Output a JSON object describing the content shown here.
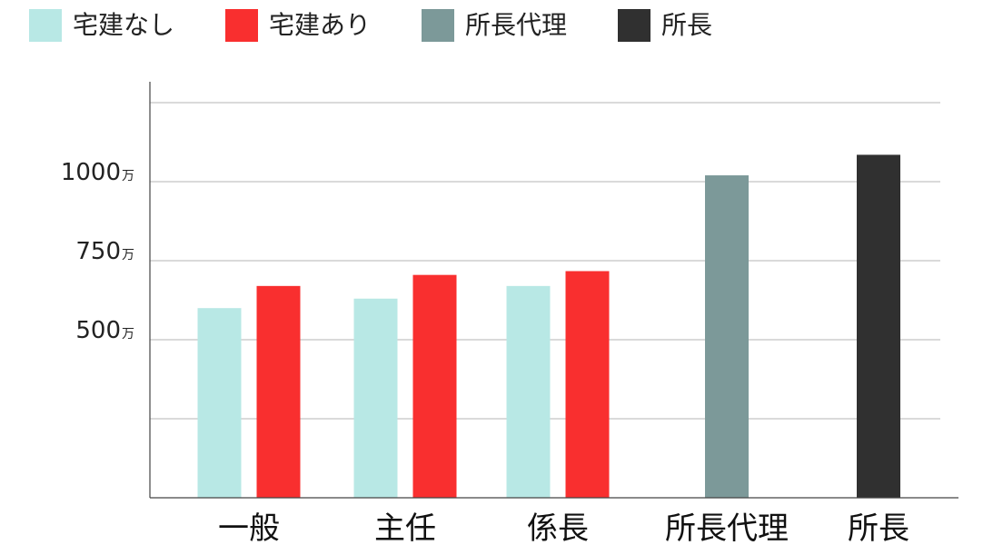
{
  "chart_data": {
    "type": "bar",
    "categories": [
      "一般",
      "主任",
      "係長",
      "所長代理",
      "所長"
    ],
    "series": [
      {
        "name": "宅建なし",
        "color": "#b8e8e5",
        "values": [
          600,
          630,
          670,
          null,
          null
        ]
      },
      {
        "name": "宅建あり",
        "color": "#f92f2f",
        "values": [
          670,
          705,
          717,
          null,
          null
        ]
      },
      {
        "name": "所長代理",
        "color": "#7c9999",
        "values": [
          null,
          null,
          null,
          1020,
          null
        ]
      },
      {
        "name": "所長",
        "color": "#303030",
        "values": [
          null,
          null,
          null,
          null,
          1085
        ]
      }
    ],
    "y_ticks": [
      {
        "value": 500,
        "number": "500",
        "unit": "万"
      },
      {
        "value": 750,
        "number": "750",
        "unit": "万"
      },
      {
        "value": 1000,
        "number": "1000",
        "unit": "万"
      }
    ],
    "gridlines": [
      250,
      500,
      750,
      1000,
      1250
    ],
    "ylim": [
      0,
      1300
    ],
    "grid": true,
    "legend_position": "top-left",
    "title": "",
    "xlabel": "",
    "ylabel": ""
  }
}
